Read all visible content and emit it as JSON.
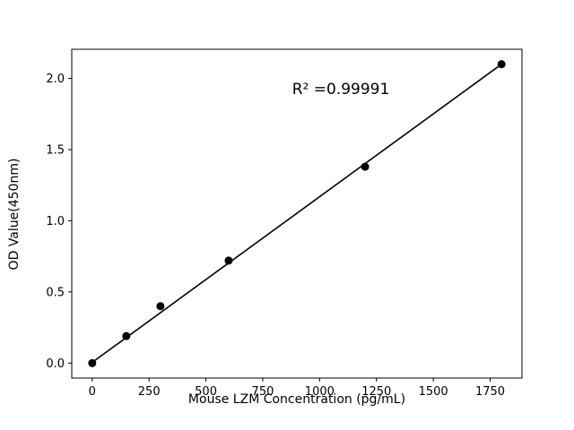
{
  "chart_data": {
    "type": "scatter",
    "title": "",
    "xlabel": "Mouse LZM Concentration (pg/mL)",
    "ylabel": "OD Value(450nm)",
    "annotation": "R² =0.99991",
    "points": {
      "x": [
        0,
        150,
        300,
        600,
        1200,
        1800
      ],
      "y": [
        0.0,
        0.19,
        0.4,
        0.72,
        1.38,
        2.1
      ]
    },
    "fit_line": {
      "x": [
        0,
        1800
      ],
      "y": [
        0.005,
        2.1
      ]
    },
    "xlim": [
      -90,
      1890
    ],
    "ylim": [
      -0.105,
      2.205
    ],
    "xticks": [
      "0",
      "250",
      "500",
      "750",
      "1000",
      "1250",
      "1500",
      "1750"
    ],
    "yticks": [
      "0.0",
      "0.5",
      "1.0",
      "1.5",
      "2.0"
    ],
    "grid": false,
    "legend": "none",
    "marker_color": "#000000",
    "line_color": "#000000",
    "background_color": "#ffffff"
  }
}
